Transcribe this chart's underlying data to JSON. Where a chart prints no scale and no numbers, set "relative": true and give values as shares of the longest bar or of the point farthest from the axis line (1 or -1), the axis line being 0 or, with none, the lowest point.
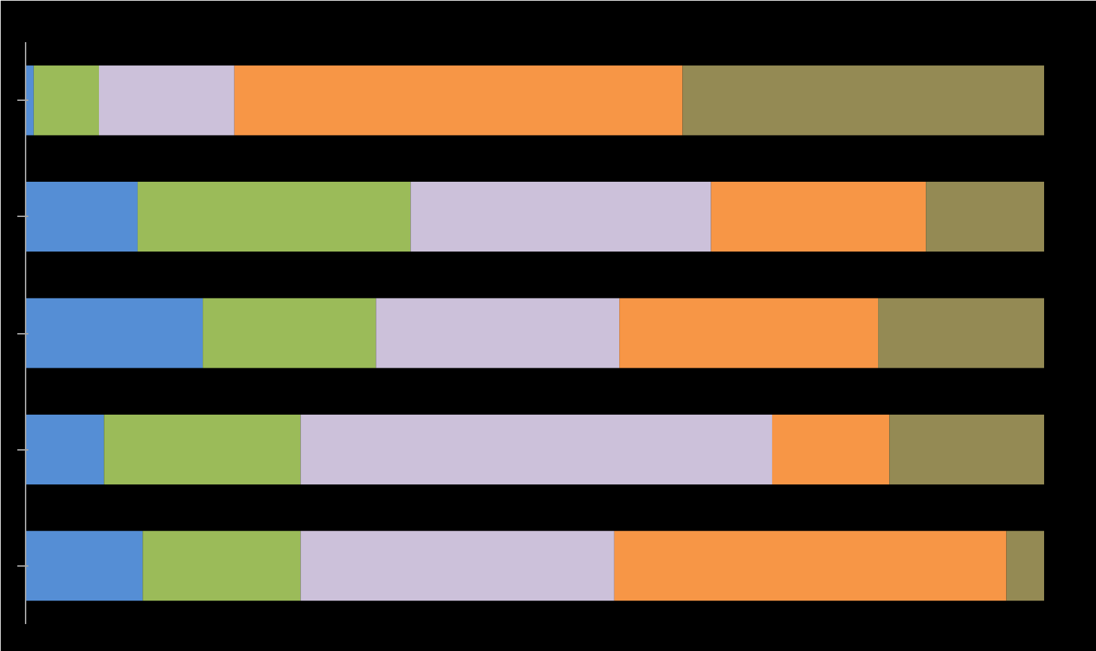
{
  "chart_data": {
    "type": "bar",
    "orientation": "horizontal",
    "stacked": true,
    "relative": true,
    "grid": false,
    "categories": [
      null,
      null,
      null,
      null,
      null
    ],
    "series": [
      {
        "color": "#558ed5",
        "values": [
          0.008,
          0.11,
          0.174,
          0.077,
          0.115
        ]
      },
      {
        "color": "#9bbb59",
        "values": [
          0.064,
          0.268,
          0.17,
          0.193,
          0.155
        ]
      },
      {
        "color": "#ccc1da",
        "values": [
          0.133,
          0.295,
          0.239,
          0.463,
          0.308
        ]
      },
      {
        "color": "#f79646",
        "values": [
          0.44,
          0.211,
          0.254,
          0.115,
          0.385
        ]
      },
      {
        "color": "#948a54",
        "values": [
          0.355,
          0.116,
          0.163,
          0.152,
          0.037
        ]
      }
    ]
  }
}
